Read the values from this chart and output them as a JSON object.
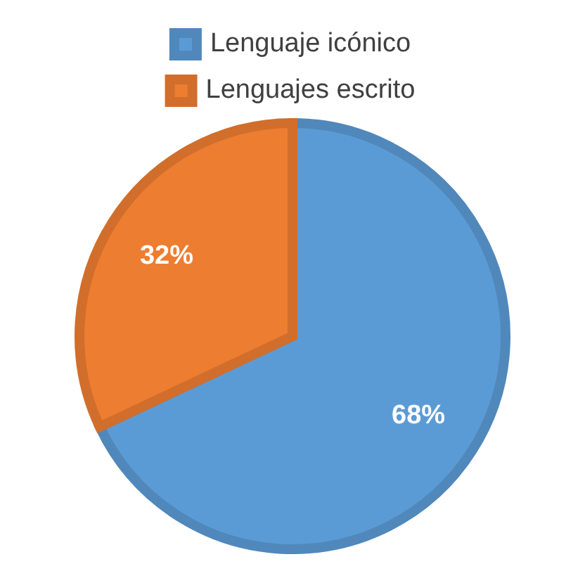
{
  "chart_data": {
    "type": "pie",
    "categories": [
      "Lenguaje icónico",
      "Lenguajes escrito"
    ],
    "values": [
      68,
      32
    ],
    "colors": [
      "#5b9bd5",
      "#ed7d31"
    ],
    "value_labels": [
      "68%",
      "32%"
    ],
    "legend": "top"
  }
}
